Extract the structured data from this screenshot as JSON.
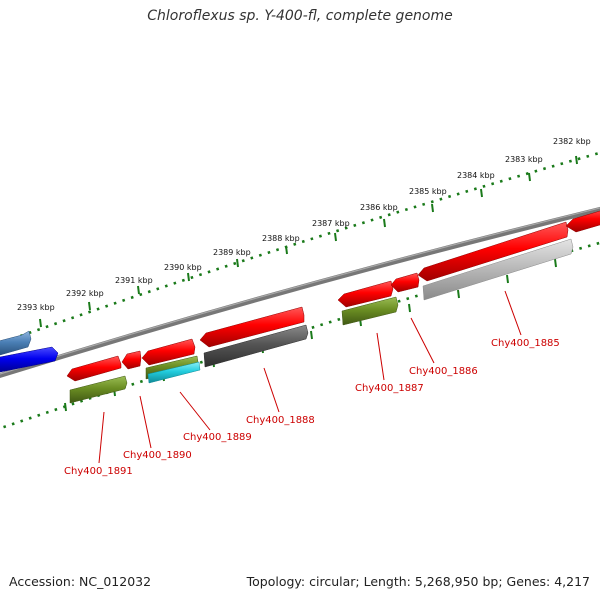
{
  "title": "Chloroflexus sp. Y-400-fl, complete genome",
  "footer": {
    "accession": "Accession: NC_012032",
    "summary": "Topology: circular; Length: 5,268,950 bp; Genes: 4,217"
  },
  "ticks": [
    {
      "label": "2393 kbp"
    },
    {
      "label": "2392 kbp"
    },
    {
      "label": "2391 kbp"
    },
    {
      "label": "2390 kbp"
    },
    {
      "label": "2389 kbp"
    },
    {
      "label": "2388 kbp"
    },
    {
      "label": "2387 kbp"
    },
    {
      "label": "2386 kbp"
    },
    {
      "label": "2385 kbp"
    },
    {
      "label": "2384 kbp"
    },
    {
      "label": "2383 kbp"
    },
    {
      "label": "2382 kbp"
    }
  ],
  "gene_labels": [
    {
      "text": "Chy400_1891"
    },
    {
      "text": "Chy400_1890"
    },
    {
      "text": "Chy400_1889"
    },
    {
      "text": "Chy400_1888"
    },
    {
      "text": "Chy400_1887"
    },
    {
      "text": "Chy400_1886"
    },
    {
      "text": "Chy400_1885"
    }
  ],
  "colors": {
    "backbone": "#777777",
    "tick": "#1a7a1a",
    "cds": "#ff0000",
    "label": "#cc0000",
    "blue_feature": "#0000ee",
    "steel_feature": "#4a7fb5",
    "olive_feature": "#6b8e23",
    "cyan_feature": "#22ccdd",
    "dark_gray_feature": "#555555",
    "light_gray_feature": "#bbbbbb"
  }
}
